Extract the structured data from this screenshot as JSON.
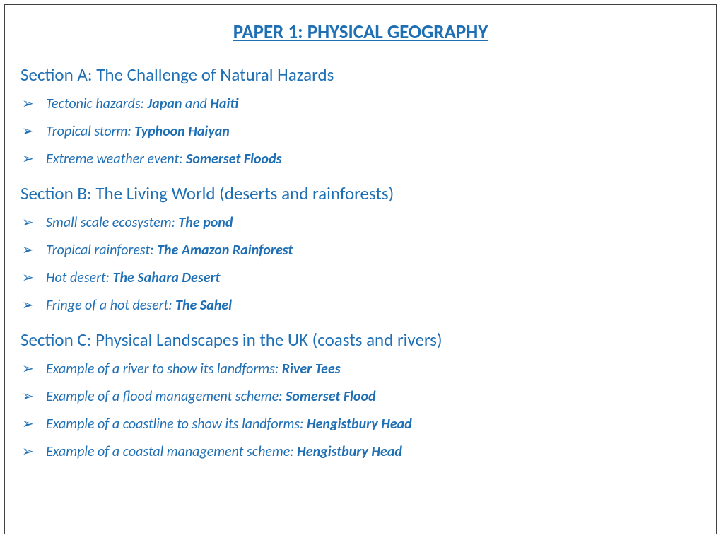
{
  "colors": {
    "text": "#1f6fb5",
    "border": "#404040",
    "background": "#ffffff"
  },
  "typography": {
    "title_fontsize": 27,
    "heading_fontsize": 25,
    "item_fontsize": 20,
    "font_family": "Calibri"
  },
  "bullet_glyph": "➢",
  "title": "PAPER 1: PHYSICAL GEOGRAPHY",
  "sections": [
    {
      "heading": "Section A: The Challenge of Natural Hazards",
      "items": [
        {
          "prefix": "Tectonic hazards: ",
          "bold1": "Japan",
          "mid": " and ",
          "bold2": "Haiti"
        },
        {
          "prefix": "Tropical storm: ",
          "bold1": "Typhoon Haiyan",
          "mid": "",
          "bold2": ""
        },
        {
          "prefix": "Extreme weather event: ",
          "bold1": "Somerset Floods",
          "mid": "",
          "bold2": ""
        }
      ]
    },
    {
      "heading": "Section B: The Living World (deserts and rainforests)",
      "items": [
        {
          "prefix": "Small scale ecosystem: ",
          "bold1": "The pond",
          "mid": "",
          "bold2": ""
        },
        {
          "prefix": "Tropical rainforest: ",
          "bold1": "The Amazon Rainforest",
          "mid": "",
          "bold2": ""
        },
        {
          "prefix": "Hot desert: ",
          "bold1": "The Sahara Desert",
          "mid": "",
          "bold2": ""
        },
        {
          "prefix": "Fringe of a hot desert: ",
          "bold1": "The Sahel",
          "mid": "",
          "bold2": ""
        }
      ]
    },
    {
      "heading": "Section C: Physical Landscapes in the UK (coasts and rivers)",
      "items": [
        {
          "prefix": "Example of a river to show its landforms: ",
          "bold1": "River Tees",
          "mid": "",
          "bold2": ""
        },
        {
          "prefix": "Example of a flood management scheme: ",
          "bold1": "Somerset Flood",
          "mid": "",
          "bold2": ""
        },
        {
          "prefix": "Example of a coastline to show its landforms: ",
          "bold1": "Hengistbury Head",
          "mid": "",
          "bold2": ""
        },
        {
          "prefix": "Example of a coastal management scheme: ",
          "bold1": "Hengistbury Head",
          "mid": "",
          "bold2": ""
        }
      ]
    }
  ]
}
